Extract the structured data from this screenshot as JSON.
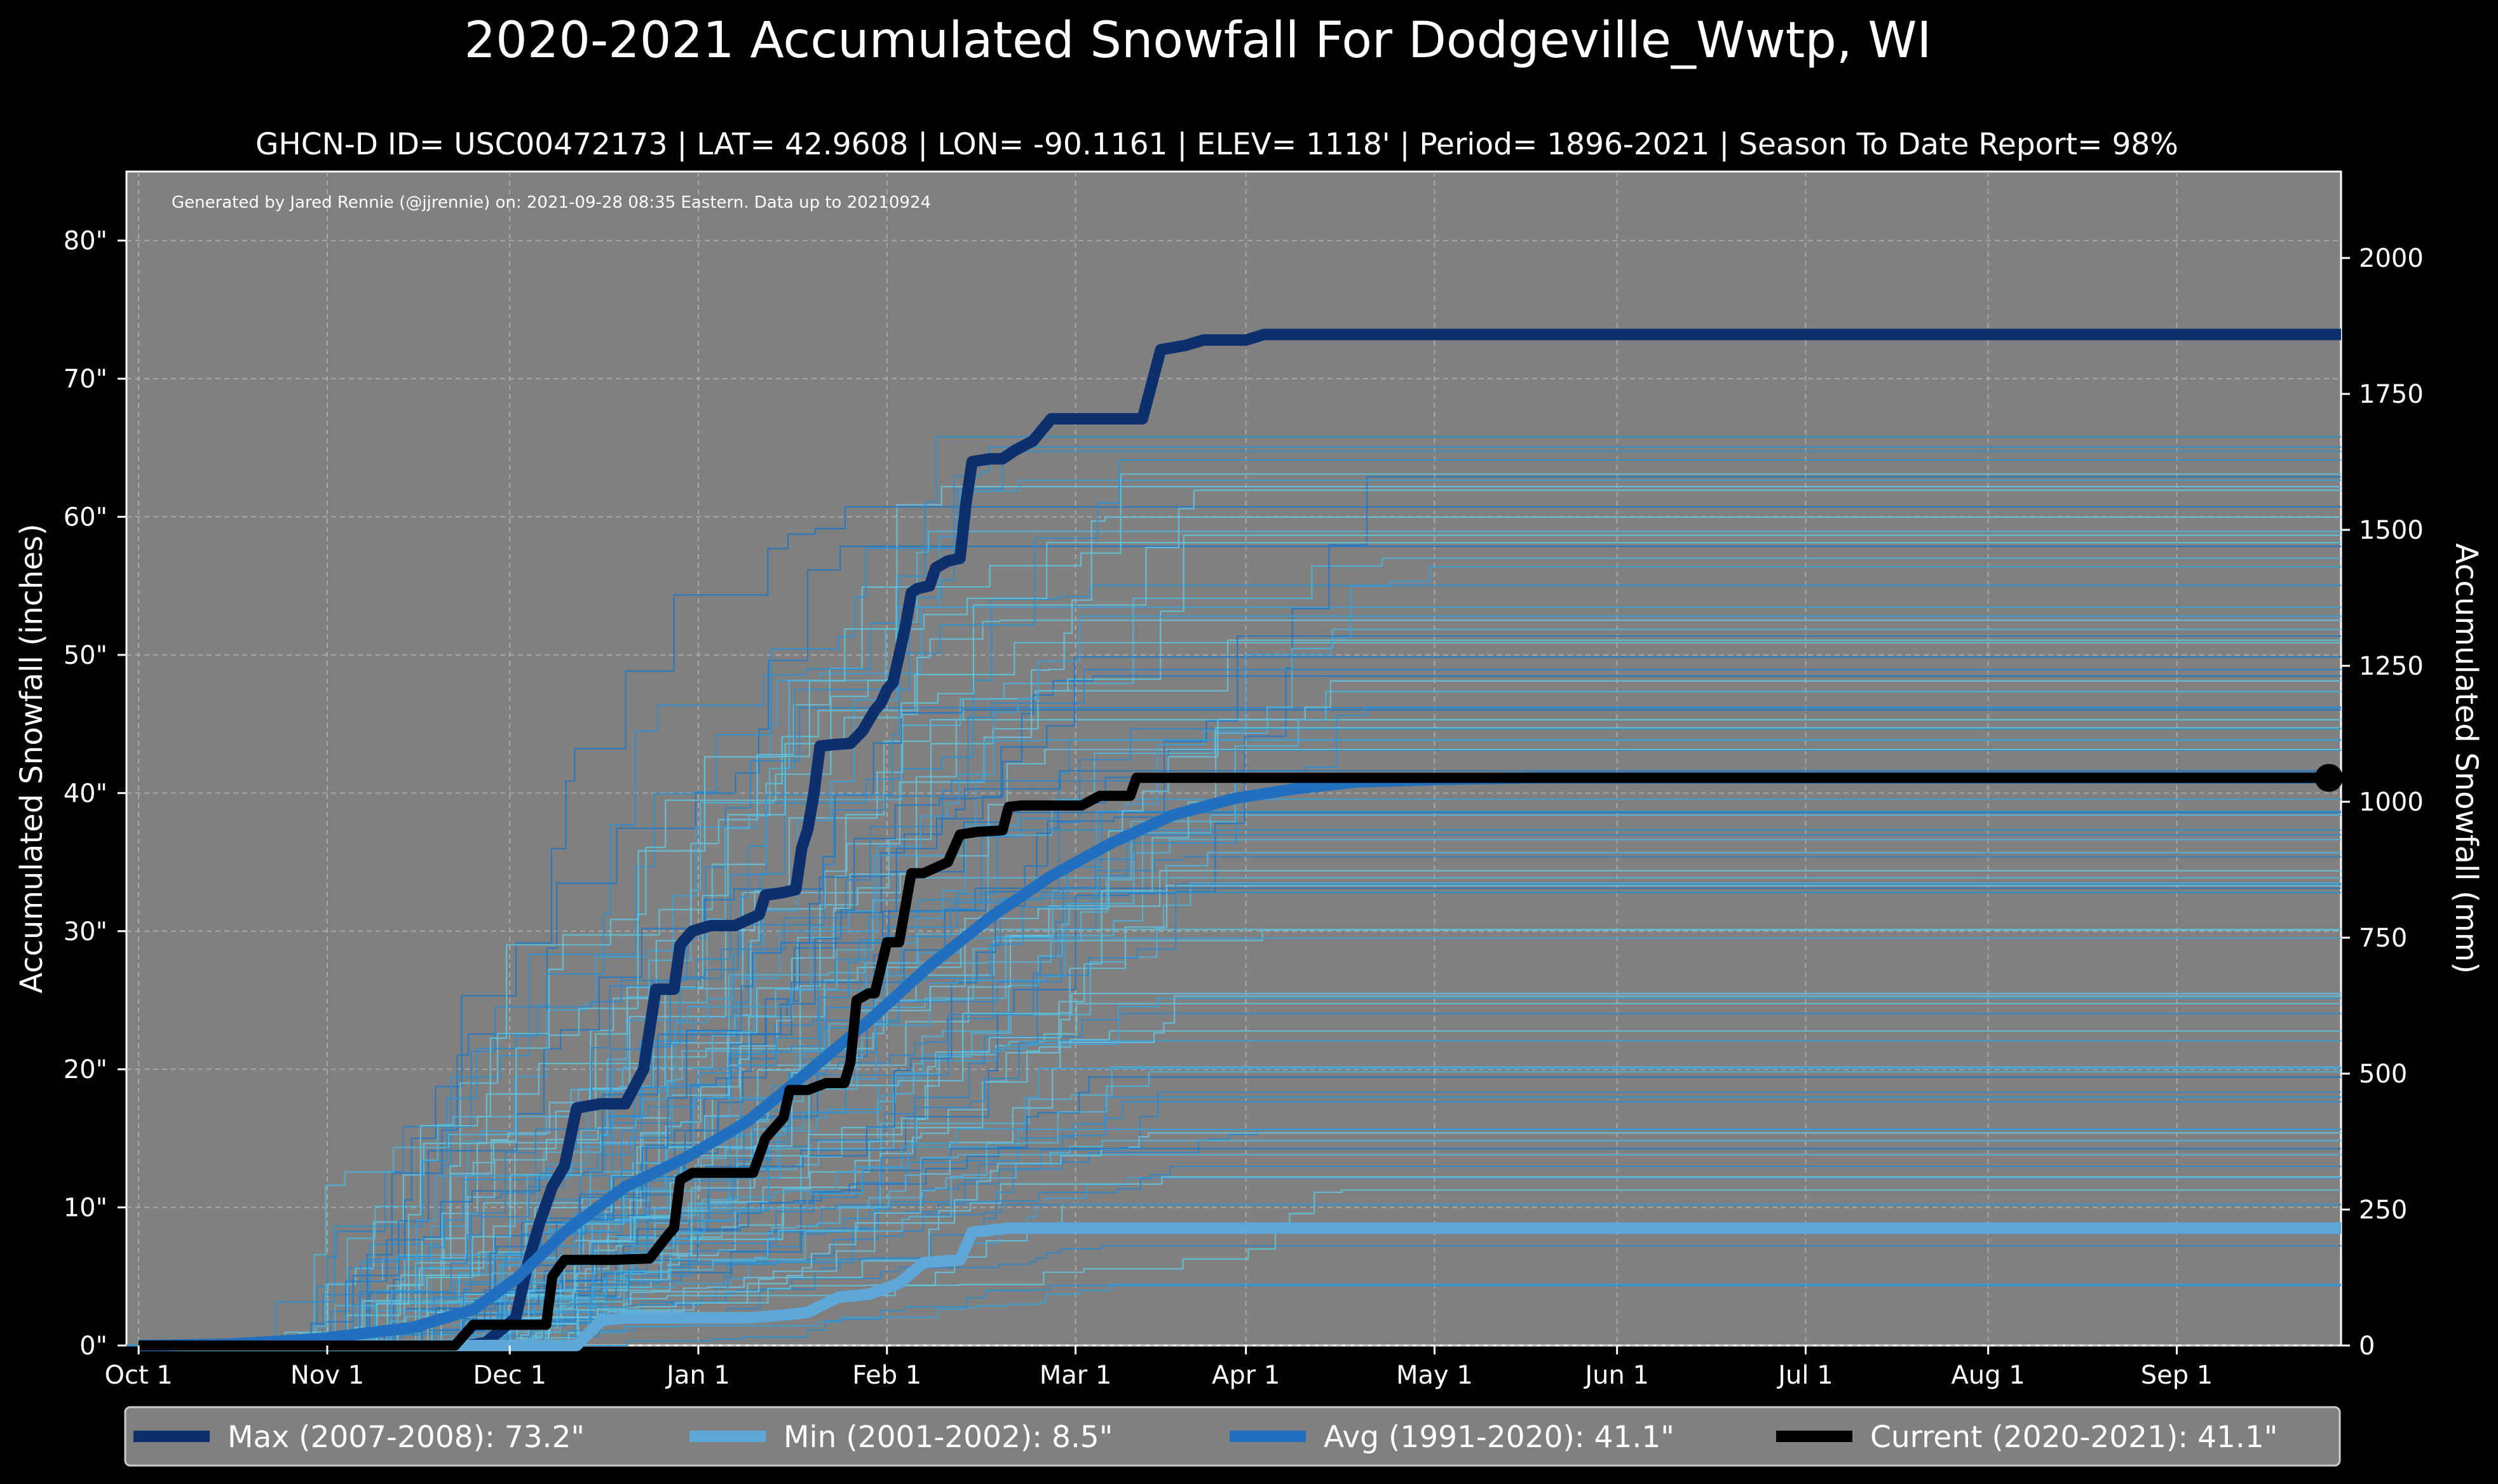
{
  "chart_data": {
    "type": "line",
    "title": "2020-2021 Accumulated Snowfall For Dodgeville_Wwtp, WI",
    "subtitle": "GHCN-D ID= USC00472173 | LAT= 42.9608 | LON= -90.1161 | ELEV= 1118' | Period= 1896-2021 | Season To Date Report= 98%",
    "credit": "Generated by Jared Rennie (@jjrennie) on: 2021-09-28 08:35 Eastern. Data up to 20210924",
    "xlabel": "",
    "ylabel": "Accumulated Snowfall (inches)",
    "ylabel_right": "Accumulated Snowfall (mm)",
    "xlim_days": [
      -2,
      362
    ],
    "ylim_in": [
      0,
      85
    ],
    "ylim_mm": [
      0,
      2159
    ],
    "grid": true,
    "x_ticks": [
      {
        "day": 0,
        "label": "Oct 1"
      },
      {
        "day": 31,
        "label": "Nov 1"
      },
      {
        "day": 61,
        "label": "Dec 1"
      },
      {
        "day": 92,
        "label": "Jan 1"
      },
      {
        "day": 123,
        "label": "Feb 1"
      },
      {
        "day": 154,
        "label": "Mar 1"
      },
      {
        "day": 182,
        "label": "Apr 1"
      },
      {
        "day": 213,
        "label": "May 1"
      },
      {
        "day": 243,
        "label": "Jun 1"
      },
      {
        "day": 274,
        "label": "Jul 1"
      },
      {
        "day": 304,
        "label": "Aug 1"
      },
      {
        "day": 335,
        "label": "Sep 1"
      }
    ],
    "y_ticks_in": [
      {
        "value": 0,
        "label": "0\""
      },
      {
        "value": 10,
        "label": "10\""
      },
      {
        "value": 20,
        "label": "20\""
      },
      {
        "value": 30,
        "label": "30\""
      },
      {
        "value": 40,
        "label": "40\""
      },
      {
        "value": 50,
        "label": "50\""
      },
      {
        "value": 60,
        "label": "60\""
      },
      {
        "value": 70,
        "label": "70\""
      },
      {
        "value": 80,
        "label": "80\""
      }
    ],
    "y_ticks_mm": [
      {
        "value": 0,
        "label": "0"
      },
      {
        "value": 250,
        "label": "250"
      },
      {
        "value": 500,
        "label": "500"
      },
      {
        "value": 750,
        "label": "750"
      },
      {
        "value": 1000,
        "label": "1000"
      },
      {
        "value": 1250,
        "label": "1250"
      },
      {
        "value": 1500,
        "label": "1500"
      },
      {
        "value": 1750,
        "label": "1750"
      },
      {
        "value": 2000,
        "label": "2000"
      }
    ],
    "series": [
      {
        "name": "Max (2007-2008)",
        "legend_value": "73.2\"",
        "color": "#0d2f6e",
        "width": 18,
        "points": [
          [
            0,
            0
          ],
          [
            54,
            0
          ],
          [
            57,
            0.2
          ],
          [
            62,
            2
          ],
          [
            64,
            6
          ],
          [
            66,
            9
          ],
          [
            68,
            11.5
          ],
          [
            70,
            13
          ],
          [
            72,
            17.2
          ],
          [
            76,
            17.5
          ],
          [
            80,
            17.5
          ],
          [
            83,
            20
          ],
          [
            85,
            25.8
          ],
          [
            88,
            25.8
          ],
          [
            89,
            29
          ],
          [
            91,
            30
          ],
          [
            94,
            30.4
          ],
          [
            98,
            30.4
          ],
          [
            102,
            31.2
          ],
          [
            103,
            32.6
          ],
          [
            106,
            32.8
          ],
          [
            108,
            33
          ],
          [
            109,
            36
          ],
          [
            110,
            37.4
          ],
          [
            111,
            40
          ],
          [
            112,
            43.4
          ],
          [
            114,
            43.5
          ],
          [
            117,
            43.6
          ],
          [
            119,
            44.5
          ],
          [
            121,
            46
          ],
          [
            122,
            46.5
          ],
          [
            123,
            47.5
          ],
          [
            124,
            48
          ],
          [
            126,
            52
          ],
          [
            127,
            54.5
          ],
          [
            128,
            54.8
          ],
          [
            130,
            55
          ],
          [
            131,
            56.3
          ],
          [
            133,
            56.8
          ],
          [
            135,
            57
          ],
          [
            136,
            61
          ],
          [
            137,
            64
          ],
          [
            140,
            64.2
          ],
          [
            142,
            64.2
          ],
          [
            144,
            64.8
          ],
          [
            147,
            65.5
          ],
          [
            150,
            67.1
          ],
          [
            154,
            67.1
          ],
          [
            160,
            67.1
          ],
          [
            165,
            67.1
          ],
          [
            168,
            72.1
          ],
          [
            172,
            72.4
          ],
          [
            175,
            72.8
          ],
          [
            182,
            72.8
          ],
          [
            185,
            73.2
          ],
          [
            362,
            73.2
          ]
        ]
      },
      {
        "name": "Min (2001-2002)",
        "legend_value": "8.5\"",
        "color": "#5ea8d9",
        "width": 18,
        "points": [
          [
            0,
            0
          ],
          [
            72,
            0
          ],
          [
            76,
            1.8
          ],
          [
            80,
            2
          ],
          [
            85,
            2
          ],
          [
            90,
            2
          ],
          [
            100,
            2
          ],
          [
            106,
            2.2
          ],
          [
            110,
            2.4
          ],
          [
            115,
            3.5
          ],
          [
            120,
            3.7
          ],
          [
            125,
            4.5
          ],
          [
            129,
            6
          ],
          [
            135,
            6.2
          ],
          [
            137,
            8.2
          ],
          [
            143,
            8.5
          ],
          [
            362,
            8.5
          ]
        ]
      },
      {
        "name": "Avg (1991-2020)",
        "legend_value": "41.1\"",
        "color": "#2170bf",
        "width": 18,
        "points": [
          [
            0,
            0
          ],
          [
            15,
            0.1
          ],
          [
            30,
            0.5
          ],
          [
            45,
            1.3
          ],
          [
            55,
            2.6
          ],
          [
            62,
            4.8
          ],
          [
            70,
            8.2
          ],
          [
            80,
            11.5
          ],
          [
            90,
            13.6
          ],
          [
            100,
            16.2
          ],
          [
            110,
            19.8
          ],
          [
            120,
            23.5
          ],
          [
            130,
            27.5
          ],
          [
            140,
            31
          ],
          [
            150,
            34
          ],
          [
            160,
            36.4
          ],
          [
            170,
            38.4
          ],
          [
            180,
            39.6
          ],
          [
            190,
            40.3
          ],
          [
            200,
            40.8
          ],
          [
            215,
            41
          ],
          [
            230,
            41.1
          ],
          [
            362,
            41.1
          ]
        ]
      },
      {
        "name": "Current (2020-2021)",
        "legend_value": "41.1\"",
        "color": "#000000",
        "width": 16,
        "points": [
          [
            0,
            0
          ],
          [
            52,
            0
          ],
          [
            55,
            1.5
          ],
          [
            67,
            1.5
          ],
          [
            68,
            5
          ],
          [
            70,
            6.2
          ],
          [
            78,
            6.2
          ],
          [
            84,
            6.3
          ],
          [
            87,
            8
          ],
          [
            88,
            8.5
          ],
          [
            89,
            12
          ],
          [
            91,
            12.5
          ],
          [
            98,
            12.5
          ],
          [
            101,
            12.5
          ],
          [
            103,
            15
          ],
          [
            104,
            15.5
          ],
          [
            106,
            16.5
          ],
          [
            107,
            18.5
          ],
          [
            110,
            18.5
          ],
          [
            113,
            19
          ],
          [
            116,
            19
          ],
          [
            117,
            20.5
          ],
          [
            118,
            25
          ],
          [
            120,
            25.5
          ],
          [
            121,
            25.5
          ],
          [
            123,
            29.2
          ],
          [
            125,
            29.2
          ],
          [
            127,
            34.2
          ],
          [
            129,
            34.2
          ],
          [
            133,
            35
          ],
          [
            135,
            37
          ],
          [
            138,
            37.2
          ],
          [
            142,
            37.3
          ],
          [
            143,
            39
          ],
          [
            145,
            39.1
          ],
          [
            150,
            39.1
          ],
          [
            155,
            39.1
          ],
          [
            158,
            39.8
          ],
          [
            163,
            39.8
          ],
          [
            164,
            41.1
          ],
          [
            360,
            41.1
          ]
        ]
      }
    ],
    "end_marker": {
      "series": "Current (2020-2021)",
      "day": 360,
      "value": 41.1
    },
    "legend_position": "bottom"
  }
}
